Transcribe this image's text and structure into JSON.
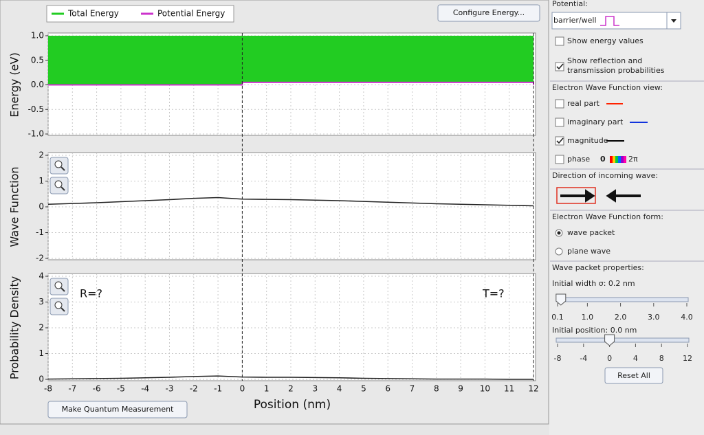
{
  "legend": {
    "items": [
      {
        "name": "Total Energy",
        "color": "#22cc22"
      },
      {
        "name": "Potential Energy",
        "color": "#cc33cc"
      }
    ]
  },
  "configure_button": "Configure Energy...",
  "measure_button": "Make Quantum Measurement",
  "x_axis": {
    "label": "Position (nm)",
    "xlim": [
      -8,
      12
    ],
    "xticks": [
      -8,
      -7,
      -6,
      -5,
      -4,
      -3,
      -2,
      -1,
      0,
      1,
      2,
      3,
      4,
      5,
      6,
      7,
      8,
      9,
      10,
      11,
      12
    ]
  },
  "energy_plot": {
    "ylabel": "Energy (eV)",
    "ylim": [
      -1,
      1
    ],
    "yticks": [
      {
        "value": 1,
        "label": "1.0"
      },
      0.5,
      {
        "value": 0,
        "label": "0.0"
      },
      -0.5,
      {
        "value": -1,
        "label": "-1.0"
      }
    ],
    "total_energy": 1.0,
    "potential": {
      "x": [
        -8,
        0,
        0,
        12,
        12
      ],
      "values": [
        0,
        0,
        0.05,
        0.05,
        0
      ]
    }
  },
  "wave_plot": {
    "ylabel": "Wave Function",
    "ylim": [
      -2,
      2
    ],
    "yticks": [
      2,
      1,
      0,
      -1,
      -2
    ],
    "x": [
      -8,
      -7,
      -6,
      -5,
      -4,
      -3,
      -2,
      -1,
      0,
      1,
      2,
      3,
      4,
      5,
      6,
      7,
      8,
      9,
      10,
      11,
      12
    ],
    "values": [
      0.1,
      0.13,
      0.16,
      0.2,
      0.24,
      0.28,
      0.33,
      0.36,
      0.3,
      0.29,
      0.28,
      0.26,
      0.24,
      0.21,
      0.18,
      0.15,
      0.12,
      0.1,
      0.08,
      0.06,
      0.04
    ]
  },
  "probability_plot": {
    "ylabel": "Probability Density",
    "ylim": [
      0,
      4
    ],
    "yticks": [
      4,
      3,
      2,
      1,
      0
    ],
    "x": [
      -8,
      -7,
      -6,
      -5,
      -4,
      -3,
      -2,
      -1,
      0,
      1,
      2,
      3,
      4,
      5,
      6,
      7,
      8,
      9,
      10,
      11,
      12
    ],
    "values": [
      0.01,
      0.02,
      0.03,
      0.04,
      0.06,
      0.08,
      0.11,
      0.13,
      0.09,
      0.08,
      0.08,
      0.07,
      0.06,
      0.04,
      0.03,
      0.02,
      0.01,
      0.01,
      0.01,
      0,
      0
    ],
    "reflection": "R=?",
    "transmission": "T=?"
  },
  "side": {
    "potential_title": "Potential:",
    "potential_choice": "barrier/well",
    "show_energy": {
      "label": "Show energy values",
      "checked": false
    },
    "show_probabilities": {
      "label": [
        "Show reflection and",
        "transmission probabilities"
      ],
      "checked": true
    },
    "view_title": "Electron Wave Function view:",
    "view_options": [
      {
        "label": "real part",
        "checked": false,
        "color": "#ff2200"
      },
      {
        "label": "imaginary part",
        "checked": false,
        "color": "#1133dd"
      },
      {
        "label": "magnitude",
        "checked": true,
        "color": "#000000"
      },
      {
        "label": "phase",
        "checked": false
      }
    ],
    "phase_range": [
      "0",
      "2π"
    ],
    "direction_title": "Direction of incoming wave:",
    "incoming_direction": "right",
    "form_title": "Electron Wave Function form:",
    "form_options": [
      {
        "label": "wave packet",
        "selected": true
      },
      {
        "label": "plane wave",
        "selected": false
      }
    ],
    "packet_title": "Wave packet properties:",
    "width_slider": {
      "label": "Initial width σ: 0.2 nm",
      "value": 0.2,
      "range": [
        0.1,
        4
      ],
      "ticks": [
        0.1,
        {
          "value": 1,
          "label": "1.0"
        },
        {
          "value": 2,
          "label": "2.0"
        },
        {
          "value": 3,
          "label": "3.0"
        },
        {
          "value": 4,
          "label": "4.0"
        }
      ]
    },
    "position_slider": {
      "label": "Initial position: 0.0 nm",
      "value": 0,
      "range": [
        -8,
        12
      ],
      "ticks": [
        -8,
        -4,
        0,
        4,
        8,
        12
      ]
    },
    "reset_button": "Reset All"
  }
}
